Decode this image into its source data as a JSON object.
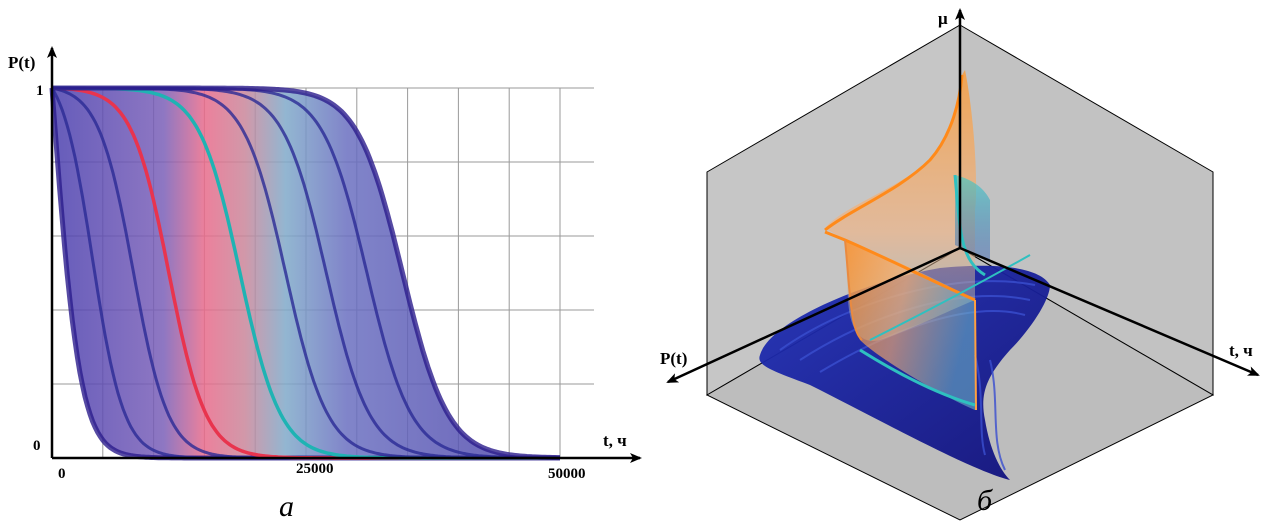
{
  "chart_data": [
    {
      "id": "a",
      "type": "line",
      "caption": "а",
      "ylabel": "P(t)",
      "xlabel": "t, ч",
      "x_ticks": [
        "0",
        "25000",
        "50000"
      ],
      "y_ticks": [
        "0",
        "1"
      ],
      "xlim": [
        0,
        50000
      ],
      "ylim": [
        0,
        1
      ],
      "grid": true,
      "colors": {
        "band": "#5a4fb0",
        "curves": "#2a2b95",
        "highlight_red": "#e8344e",
        "highlight_cyan": "#1fb3b3",
        "envelope": "#2c1d8c"
      },
      "series": [
        {
          "midpoint": 0,
          "width": 2300,
          "color_role": "envelope"
        },
        {
          "midpoint": 4000,
          "width": 2600,
          "color_role": "curves"
        },
        {
          "midpoint": 8000,
          "width": 2900,
          "color_role": "curves"
        },
        {
          "midpoint": 11500,
          "width": 3100,
          "color_role": "highlight_red"
        },
        {
          "midpoint": 18500,
          "width": 3400,
          "color_role": "highlight_cyan"
        },
        {
          "midpoint": 23000,
          "width": 3500,
          "color_role": "curves"
        },
        {
          "midpoint": 27000,
          "width": 3600,
          "color_role": "curves"
        },
        {
          "midpoint": 31000,
          "width": 3700,
          "color_role": "curves"
        },
        {
          "midpoint": 34500,
          "width": 3800,
          "color_role": "envelope"
        }
      ]
    },
    {
      "id": "b",
      "type": "area",
      "caption": "б",
      "zlabel": "μ",
      "xlabel": "t, ч",
      "ylabel": "P(t)",
      "colors": {
        "panel": "#c4c4c4",
        "surface_orange": "#ff9a2e",
        "surface_cyan": "#27c3c3",
        "surface_blue": "#1c1fa0"
      }
    }
  ]
}
